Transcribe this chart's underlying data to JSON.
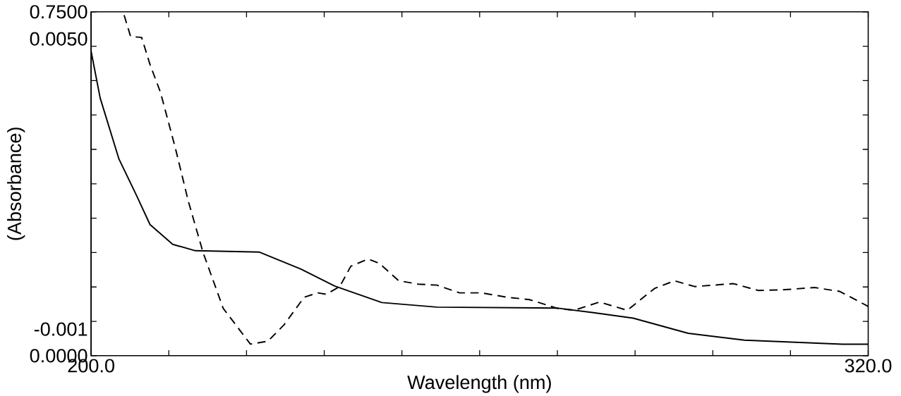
{
  "chart_data": {
    "type": "line",
    "xlabel": "Wavelength (nm)",
    "y2label": "(Absorbance)",
    "xlim": [
      200,
      320
    ],
    "xticks": [
      {
        "value": 200,
        "label": "200.0"
      },
      {
        "value": 212,
        "label": null
      },
      {
        "value": 224,
        "label": null
      },
      {
        "value": 236,
        "label": null
      },
      {
        "value": 248,
        "label": null
      },
      {
        "value": 260,
        "label": null
      },
      {
        "value": 272,
        "label": null
      },
      {
        "value": 284,
        "label": null
      },
      {
        "value": 296,
        "label": null
      },
      {
        "value": 308,
        "label": null
      },
      {
        "value": 320,
        "label": "320.0"
      }
    ],
    "ylim": [
      0,
      0.75
    ],
    "yticks": [
      {
        "value": 0,
        "label": "0.0000"
      },
      {
        "value": 0.075,
        "label": null
      },
      {
        "value": 0.15,
        "label": null
      },
      {
        "value": 0.225,
        "label": null
      },
      {
        "value": 0.3,
        "label": null
      },
      {
        "value": 0.375,
        "label": null
      },
      {
        "value": 0.45,
        "label": null
      },
      {
        "value": 0.525,
        "label": null
      },
      {
        "value": 0.6,
        "label": null
      },
      {
        "value": 0.675,
        "label": null
      },
      {
        "value": 0.75,
        "label": "0.7500"
      }
    ],
    "y2lim": [
      -0.00155,
      0.00556
    ],
    "y2ticks": [
      {
        "value": -0.001,
        "label": "-0.001"
      },
      {
        "value": 0.005,
        "label": "0.0050"
      }
    ],
    "series": [
      {
        "color": "#000000",
        "line_style": "solid",
        "x": [
          200.0,
          201.4,
          204.3,
          207.0,
          209.1,
          212.6,
          216.1,
          226.0,
          232.4,
          237.6,
          244.9,
          253.4,
          271.9,
          277.6,
          283.7,
          292.2,
          300.9,
          316.0,
          320.0
        ],
        "values": [
          0.664,
          0.562,
          0.429,
          0.35,
          0.286,
          0.243,
          0.229,
          0.226,
          0.189,
          0.152,
          0.116,
          0.106,
          0.104,
          0.094,
          0.082,
          0.049,
          0.034,
          0.025,
          0.025
        ]
      },
      {
        "color": "#000000",
        "line_style": "dashed",
        "axis": "y2",
        "x": [
          205.1,
          206.1,
          207.8,
          209.1,
          210.7,
          213.0,
          215.0,
          217.3,
          220.4,
          224.6,
          227.3,
          229.8,
          232.9,
          235.0,
          236.3,
          238.4,
          240.1,
          242.8,
          244.5,
          247.5,
          250.5,
          253.4,
          256.9,
          260.3,
          264.2,
          267.7,
          272.0,
          274.6,
          278.5,
          282.8,
          287.0,
          290.1,
          293.2,
          299.2,
          303.0,
          306.5,
          311.7,
          315.6,
          320.0
        ],
        "values": [
          0.00549,
          0.00505,
          0.00503,
          0.00447,
          0.0039,
          0.00275,
          0.00165,
          0.00058,
          -0.00057,
          -0.00131,
          -0.00125,
          -0.00091,
          -0.00034,
          -0.00025,
          -0.00028,
          -0.00012,
          0.0003,
          0.00045,
          0.00036,
          0.0,
          -7e-05,
          -9e-05,
          -0.00025,
          -0.00025,
          -0.00034,
          -0.00039,
          -0.00057,
          -0.00061,
          -0.00044,
          -0.00061,
          -0.00016,
          0.0,
          -0.00012,
          -6e-05,
          -0.0002,
          -0.00019,
          -0.00014,
          -0.00022,
          -0.00053
        ]
      }
    ]
  }
}
